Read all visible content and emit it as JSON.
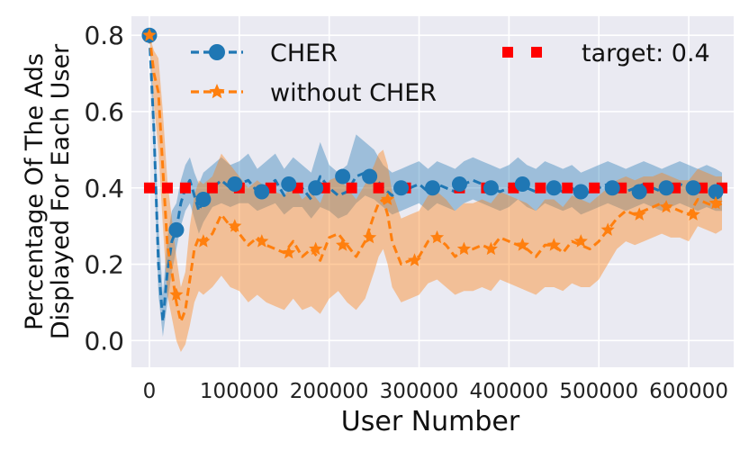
{
  "chart_data": {
    "type": "line",
    "title": "",
    "xlabel": "User Number",
    "ylabel_line1": "Percentage Of The Ads",
    "ylabel_line2": "Displayed For Each User",
    "xlim": [
      -20000,
      650000
    ],
    "ylim": [
      -0.07,
      0.85
    ],
    "xticks": [
      0,
      100000,
      200000,
      300000,
      400000,
      500000,
      600000
    ],
    "xtick_labels": [
      "0",
      "100000",
      "200000",
      "300000",
      "400000",
      "500000",
      "600000"
    ],
    "yticks": [
      0.0,
      0.2,
      0.4,
      0.6,
      0.8
    ],
    "ytick_labels": [
      "0.0",
      "0.2",
      "0.4",
      "0.6",
      "0.8"
    ],
    "grid": true,
    "background": "#eaeaf2",
    "legend_position": "top",
    "series": [
      {
        "name": "CHER",
        "color": "#1f77b4",
        "marker": "circle",
        "linestyle": "dashed",
        "x": [
          0,
          5000,
          10000,
          15000,
          20000,
          25000,
          30000,
          35000,
          40000,
          45000,
          50000,
          55000,
          60000,
          70000,
          80000,
          90000,
          100000,
          110000,
          120000,
          130000,
          140000,
          150000,
          160000,
          170000,
          180000,
          190000,
          200000,
          210000,
          220000,
          230000,
          240000,
          250000,
          260000,
          270000,
          280000,
          290000,
          300000,
          310000,
          320000,
          330000,
          340000,
          350000,
          360000,
          370000,
          380000,
          390000,
          400000,
          410000,
          420000,
          430000,
          440000,
          450000,
          460000,
          470000,
          480000,
          490000,
          500000,
          510000,
          520000,
          530000,
          540000,
          550000,
          560000,
          570000,
          580000,
          590000,
          600000,
          610000,
          620000,
          630000,
          637000
        ],
        "y": [
          0.8,
          0.55,
          0.2,
          0.05,
          0.18,
          0.26,
          0.29,
          0.36,
          0.4,
          0.42,
          0.38,
          0.34,
          0.37,
          0.4,
          0.42,
          0.4,
          0.41,
          0.42,
          0.39,
          0.4,
          0.42,
          0.38,
          0.41,
          0.4,
          0.37,
          0.43,
          0.4,
          0.38,
          0.39,
          0.43,
          0.44,
          0.43,
          0.4,
          0.38,
          0.39,
          0.4,
          0.41,
          0.39,
          0.41,
          0.4,
          0.39,
          0.41,
          0.42,
          0.41,
          0.4,
          0.39,
          0.4,
          0.42,
          0.4,
          0.39,
          0.41,
          0.4,
          0.39,
          0.4,
          0.38,
          0.39,
          0.4,
          0.41,
          0.4,
          0.39,
          0.4,
          0.41,
          0.4,
          0.39,
          0.4,
          0.41,
          0.4,
          0.39,
          0.4,
          0.39,
          0.38
        ],
        "lower": [
          0.8,
          0.48,
          0.12,
          0.01,
          0.1,
          0.18,
          0.24,
          0.3,
          0.34,
          0.36,
          0.32,
          0.28,
          0.31,
          0.35,
          0.36,
          0.35,
          0.36,
          0.36,
          0.34,
          0.35,
          0.36,
          0.33,
          0.35,
          0.35,
          0.32,
          0.35,
          0.34,
          0.32,
          0.33,
          0.36,
          0.38,
          0.37,
          0.35,
          0.33,
          0.34,
          0.35,
          0.36,
          0.34,
          0.36,
          0.35,
          0.34,
          0.36,
          0.37,
          0.36,
          0.35,
          0.34,
          0.35,
          0.37,
          0.35,
          0.34,
          0.36,
          0.35,
          0.34,
          0.35,
          0.33,
          0.34,
          0.35,
          0.36,
          0.35,
          0.34,
          0.35,
          0.36,
          0.35,
          0.34,
          0.35,
          0.36,
          0.35,
          0.34,
          0.35,
          0.34,
          0.34
        ],
        "upper": [
          0.8,
          0.62,
          0.3,
          0.12,
          0.27,
          0.34,
          0.36,
          0.42,
          0.46,
          0.48,
          0.44,
          0.41,
          0.44,
          0.46,
          0.48,
          0.46,
          0.47,
          0.49,
          0.45,
          0.47,
          0.49,
          0.45,
          0.48,
          0.46,
          0.44,
          0.52,
          0.46,
          0.44,
          0.46,
          0.54,
          0.52,
          0.5,
          0.46,
          0.44,
          0.45,
          0.46,
          0.47,
          0.45,
          0.47,
          0.46,
          0.45,
          0.47,
          0.48,
          0.47,
          0.46,
          0.45,
          0.46,
          0.48,
          0.46,
          0.45,
          0.47,
          0.46,
          0.45,
          0.46,
          0.44,
          0.45,
          0.46,
          0.47,
          0.46,
          0.45,
          0.46,
          0.47,
          0.46,
          0.45,
          0.46,
          0.47,
          0.46,
          0.45,
          0.46,
          0.45,
          0.44
        ],
        "marker_x": [
          0,
          30000,
          60000,
          95000,
          125000,
          155000,
          185000,
          215000,
          245000,
          280000,
          315000,
          345000,
          380000,
          415000,
          450000,
          480000,
          515000,
          545000,
          575000,
          605000,
          630000
        ],
        "marker_y": [
          0.8,
          0.29,
          0.37,
          0.41,
          0.39,
          0.41,
          0.4,
          0.43,
          0.43,
          0.4,
          0.4,
          0.41,
          0.4,
          0.41,
          0.4,
          0.39,
          0.4,
          0.39,
          0.4,
          0.4,
          0.39
        ]
      },
      {
        "name": "without CHER",
        "color": "#ff7f0e",
        "marker": "star",
        "linestyle": "dashed",
        "x": [
          0,
          5000,
          10000,
          15000,
          20000,
          25000,
          30000,
          35000,
          40000,
          45000,
          50000,
          55000,
          60000,
          70000,
          80000,
          90000,
          100000,
          110000,
          120000,
          130000,
          140000,
          150000,
          160000,
          170000,
          180000,
          190000,
          200000,
          210000,
          220000,
          230000,
          240000,
          250000,
          255000,
          260000,
          265000,
          270000,
          280000,
          290000,
          300000,
          310000,
          320000,
          330000,
          340000,
          350000,
          360000,
          370000,
          380000,
          390000,
          400000,
          410000,
          420000,
          430000,
          440000,
          450000,
          460000,
          470000,
          480000,
          490000,
          500000,
          510000,
          520000,
          530000,
          540000,
          550000,
          560000,
          570000,
          580000,
          590000,
          600000,
          610000,
          620000,
          630000,
          637000
        ],
        "y": [
          0.8,
          0.7,
          0.65,
          0.45,
          0.25,
          0.18,
          0.1,
          0.05,
          0.08,
          0.16,
          0.24,
          0.27,
          0.26,
          0.28,
          0.33,
          0.3,
          0.28,
          0.25,
          0.27,
          0.25,
          0.24,
          0.23,
          0.26,
          0.22,
          0.24,
          0.21,
          0.27,
          0.28,
          0.25,
          0.22,
          0.26,
          0.33,
          0.36,
          0.37,
          0.33,
          0.26,
          0.2,
          0.21,
          0.22,
          0.26,
          0.27,
          0.25,
          0.22,
          0.24,
          0.24,
          0.25,
          0.24,
          0.27,
          0.26,
          0.25,
          0.24,
          0.22,
          0.25,
          0.25,
          0.23,
          0.26,
          0.25,
          0.24,
          0.26,
          0.29,
          0.32,
          0.34,
          0.33,
          0.34,
          0.35,
          0.36,
          0.35,
          0.34,
          0.33,
          0.37,
          0.36,
          0.35,
          0.36
        ],
        "lower": [
          0.8,
          0.62,
          0.5,
          0.3,
          0.12,
          0.06,
          0.0,
          -0.03,
          -0.01,
          0.04,
          0.1,
          0.13,
          0.12,
          0.14,
          0.17,
          0.14,
          0.13,
          0.1,
          0.12,
          0.1,
          0.09,
          0.08,
          0.11,
          0.08,
          0.09,
          0.07,
          0.11,
          0.13,
          0.1,
          0.08,
          0.11,
          0.18,
          0.22,
          0.24,
          0.2,
          0.14,
          0.1,
          0.11,
          0.12,
          0.15,
          0.16,
          0.14,
          0.12,
          0.13,
          0.13,
          0.14,
          0.13,
          0.16,
          0.15,
          0.14,
          0.13,
          0.12,
          0.14,
          0.14,
          0.13,
          0.15,
          0.14,
          0.14,
          0.16,
          0.2,
          0.24,
          0.26,
          0.25,
          0.26,
          0.27,
          0.28,
          0.27,
          0.27,
          0.26,
          0.3,
          0.29,
          0.28,
          0.29
        ],
        "upper": [
          0.8,
          0.76,
          0.74,
          0.6,
          0.42,
          0.32,
          0.22,
          0.14,
          0.18,
          0.3,
          0.38,
          0.42,
          0.41,
          0.43,
          0.49,
          0.46,
          0.43,
          0.4,
          0.42,
          0.4,
          0.39,
          0.38,
          0.41,
          0.37,
          0.39,
          0.36,
          0.42,
          0.43,
          0.4,
          0.37,
          0.41,
          0.46,
          0.49,
          0.5,
          0.46,
          0.39,
          0.32,
          0.33,
          0.34,
          0.38,
          0.39,
          0.37,
          0.34,
          0.36,
          0.36,
          0.37,
          0.36,
          0.39,
          0.38,
          0.37,
          0.36,
          0.34,
          0.37,
          0.37,
          0.35,
          0.38,
          0.37,
          0.36,
          0.38,
          0.4,
          0.42,
          0.43,
          0.42,
          0.43,
          0.43,
          0.44,
          0.43,
          0.42,
          0.42,
          0.45,
          0.44,
          0.43,
          0.43
        ],
        "marker_x": [
          0,
          30000,
          60000,
          95000,
          125000,
          155000,
          185000,
          215000,
          245000,
          265000,
          295000,
          320000,
          350000,
          380000,
          415000,
          450000,
          480000,
          510000,
          545000,
          575000,
          605000,
          630000
        ],
        "marker_y": [
          0.8,
          0.12,
          0.26,
          0.3,
          0.26,
          0.23,
          0.24,
          0.25,
          0.27,
          0.37,
          0.21,
          0.27,
          0.24,
          0.24,
          0.25,
          0.25,
          0.26,
          0.29,
          0.33,
          0.35,
          0.33,
          0.36
        ]
      },
      {
        "name": "target: 0.4",
        "color": "#ff0000",
        "marker": "square",
        "linestyle": "dotted",
        "marker_x": [
          0,
          20000,
          40000,
          70000,
          100000,
          135000,
          165000,
          195000,
          225000,
          255000,
          285000,
          315000,
          345000,
          375000,
          405000,
          435000,
          465000,
          495000,
          525000,
          555000,
          585000,
          615000,
          637000
        ],
        "marker_y": [
          0.4,
          0.4,
          0.4,
          0.4,
          0.4,
          0.4,
          0.4,
          0.4,
          0.4,
          0.4,
          0.4,
          0.4,
          0.4,
          0.4,
          0.4,
          0.4,
          0.4,
          0.4,
          0.4,
          0.4,
          0.4,
          0.4,
          0.4
        ]
      }
    ],
    "legend": [
      {
        "label": "CHER"
      },
      {
        "label": "without CHER"
      },
      {
        "label": "target: 0.4"
      }
    ]
  }
}
